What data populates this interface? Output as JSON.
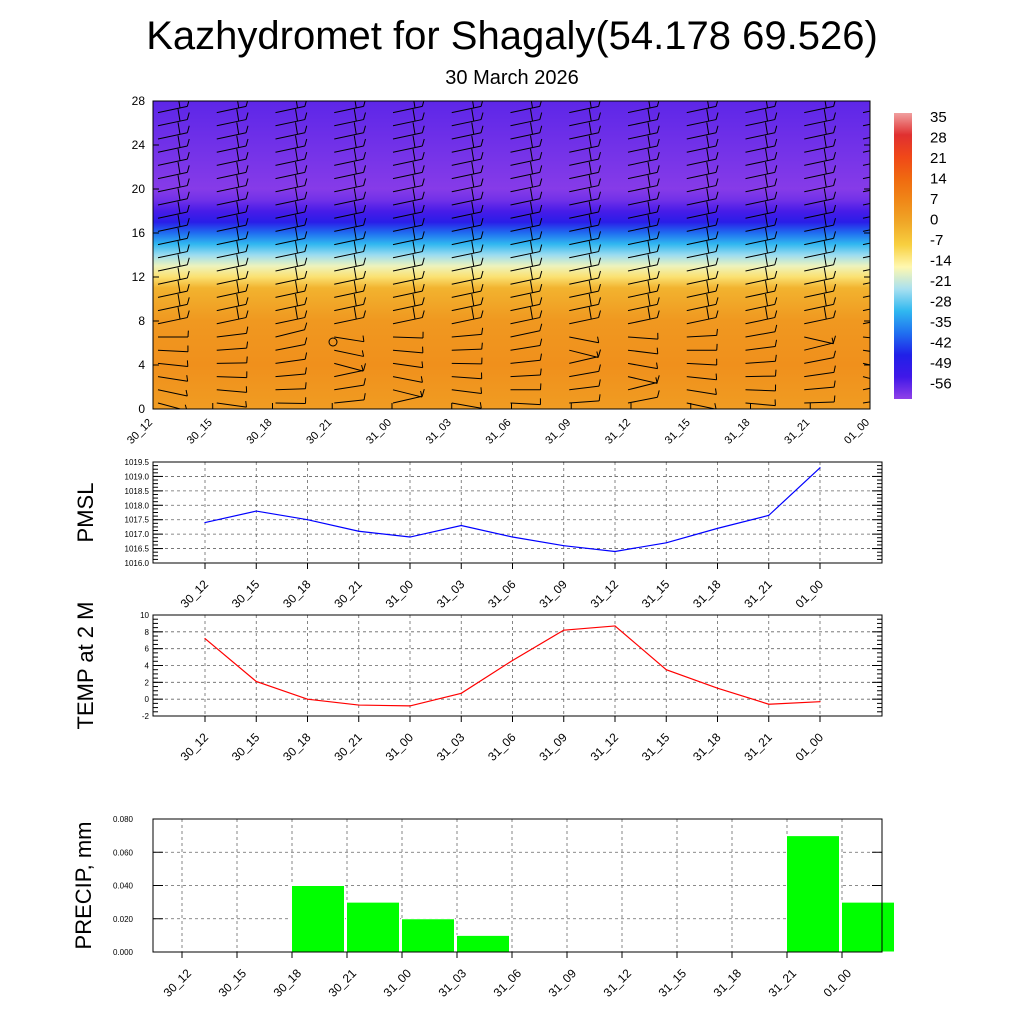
{
  "header": {
    "title": "Kazhydromet for Shagaly(54.178 69.526)",
    "subtitle": "30 March 2026"
  },
  "time_labels": [
    "30_12",
    "30_15",
    "30_18",
    "30_21",
    "31_00",
    "31_03",
    "31_06",
    "31_09",
    "31_12",
    "31_15",
    "31_18",
    "31_21",
    "01_00"
  ],
  "chart_data": [
    {
      "type": "heatmap",
      "title": "",
      "x": [
        "30_12",
        "30_15",
        "30_18",
        "30_21",
        "31_00",
        "31_03",
        "31_06",
        "31_09",
        "31_12",
        "31_15",
        "31_18",
        "31_21",
        "01_00"
      ],
      "y_ticks": [
        "0",
        "4",
        "8",
        "12",
        "16",
        "20",
        "24",
        "28"
      ],
      "ylim": [
        0,
        28
      ],
      "colorbar": {
        "labels": [
          "35",
          "28",
          "21",
          "14",
          "7",
          "0",
          "-7",
          "-14",
          "-21",
          "-28",
          "-35",
          "-42",
          "-49",
          "-56"
        ],
        "colors": [
          "#f0a0a0",
          "#e03030",
          "#f04818",
          "#f06a10",
          "#f08818",
          "#f0a828",
          "#f8d040",
          "#fff8b0",
          "#a8e0f0",
          "#30b8f0",
          "#2070f0",
          "#2020e8",
          "#4018e8",
          "#9040e8"
        ]
      },
      "temperature_profile": [
        {
          "h": 0,
          "t": 2
        },
        {
          "h": 4,
          "t": 5
        },
        {
          "h": 8,
          "t": 3
        },
        {
          "h": 11,
          "t": -3
        },
        {
          "h": 12,
          "t": -12
        },
        {
          "h": 13,
          "t": -18
        },
        {
          "h": 14,
          "t": -25
        },
        {
          "h": 15,
          "t": -32
        },
        {
          "h": 16,
          "t": -40
        },
        {
          "h": 17,
          "t": -50
        },
        {
          "h": 18,
          "t": -56
        },
        {
          "h": 19,
          "t": -60
        },
        {
          "h": 20,
          "t": -62
        },
        {
          "h": 24,
          "t": -60
        },
        {
          "h": 28,
          "t": -58
        }
      ],
      "wind_barbs": "present"
    },
    {
      "type": "line",
      "ylabel": "PMSL",
      "x": [
        "30_12",
        "30_15",
        "30_18",
        "30_21",
        "31_00",
        "31_03",
        "31_06",
        "31_09",
        "31_12",
        "31_15",
        "31_18",
        "31_21",
        "01_00"
      ],
      "values": [
        1017.4,
        1017.8,
        1017.5,
        1017.1,
        1016.9,
        1017.3,
        1016.9,
        1016.6,
        1016.4,
        1016.7,
        1017.2,
        1017.65,
        1019.3
      ],
      "ylim": [
        1016.0,
        1019.5
      ],
      "y_ticks": [
        "1016.0",
        "1016.5",
        "1017.0",
        "1017.5",
        "1018.0",
        "1018.5",
        "1019.0",
        "1019.5"
      ],
      "color": "#0000ff",
      "grid": true
    },
    {
      "type": "line",
      "ylabel": "TEMP at 2 M",
      "x": [
        "30_12",
        "30_15",
        "30_18",
        "30_21",
        "31_00",
        "31_03",
        "31_06",
        "31_09",
        "31_12",
        "31_15",
        "31_18",
        "31_21",
        "01_00"
      ],
      "values": [
        7.2,
        2.1,
        0.0,
        -0.7,
        -0.8,
        0.7,
        4.6,
        8.2,
        8.7,
        3.5,
        1.3,
        -0.6,
        -0.3
      ],
      "ylim": [
        -2,
        10
      ],
      "y_ticks": [
        "-2",
        "0",
        "2",
        "4",
        "6",
        "8",
        "10"
      ],
      "color": "#ff0000",
      "grid": true
    },
    {
      "type": "bar",
      "ylabel": "PRECIP, mm",
      "categories": [
        "30_12",
        "30_15",
        "30_18",
        "30_21",
        "31_00",
        "31_03",
        "31_06",
        "31_09",
        "31_12",
        "31_15",
        "31_18",
        "31_21",
        "01_00"
      ],
      "values": [
        0,
        0,
        0.04,
        0.03,
        0.02,
        0.01,
        0,
        0,
        0,
        0,
        0,
        0.07,
        0.03
      ],
      "ylim": [
        0,
        0.08
      ],
      "y_ticks": [
        "0.000",
        "0.020",
        "0.040",
        "0.060",
        "0.080"
      ],
      "color": "#00ff00",
      "grid": true
    }
  ]
}
